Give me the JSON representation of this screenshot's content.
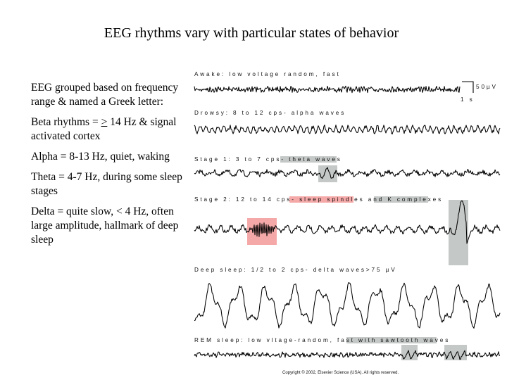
{
  "title": "EEG rhythms vary with particular states of behavior",
  "notes": {
    "intro": "EEG grouped based on frequency range & named a Greek letter:",
    "beta_prefix": "Beta rhythms = ",
    "beta_symbol": ">",
    "beta_suffix": " 14 Hz & signal activated cortex",
    "alpha": "Alpha = 8-13 Hz, quiet, waking",
    "theta": "Theta = 4-7 Hz, during some sleep stages",
    "delta": "Delta = quite slow, < 4 Hz, often large amplitude, hallmark of deep sleep"
  },
  "figure": {
    "traces": [
      {
        "label": "Awake: low voltage random, fast",
        "pattern": "fast-low"
      },
      {
        "label": "Drowsy: 8 to 12 cps- alpha waves",
        "pattern": "alpha"
      },
      {
        "label_pre": "Stage 1: 3 to 7 cps- ",
        "label_hl": "theta waves",
        "pattern": "theta"
      },
      {
        "label_pre": "Stage 2: 12 to 14 cps- ",
        "label_hl1": "sleep spindles",
        "label_mid": " and ",
        "label_hl2": "K complexes",
        "pattern": "spindle-k"
      },
      {
        "label": "Deep sleep: 1/2 to 2 cps- delta waves>75 µV",
        "pattern": "delta"
      },
      {
        "label_pre": "REM sleep: low vltage-random, fast with ",
        "label_hl": "sawtooth waves",
        "pattern": "rem"
      }
    ],
    "scale_amplitude": "50µV",
    "scale_time": "1 s",
    "copyright": "Copyright © 2002, Elsevier Science (USA). All rights reserved.",
    "colors": {
      "highlight_gray": "#c4c8c6",
      "highlight_pink": "#f4a9a8"
    }
  }
}
